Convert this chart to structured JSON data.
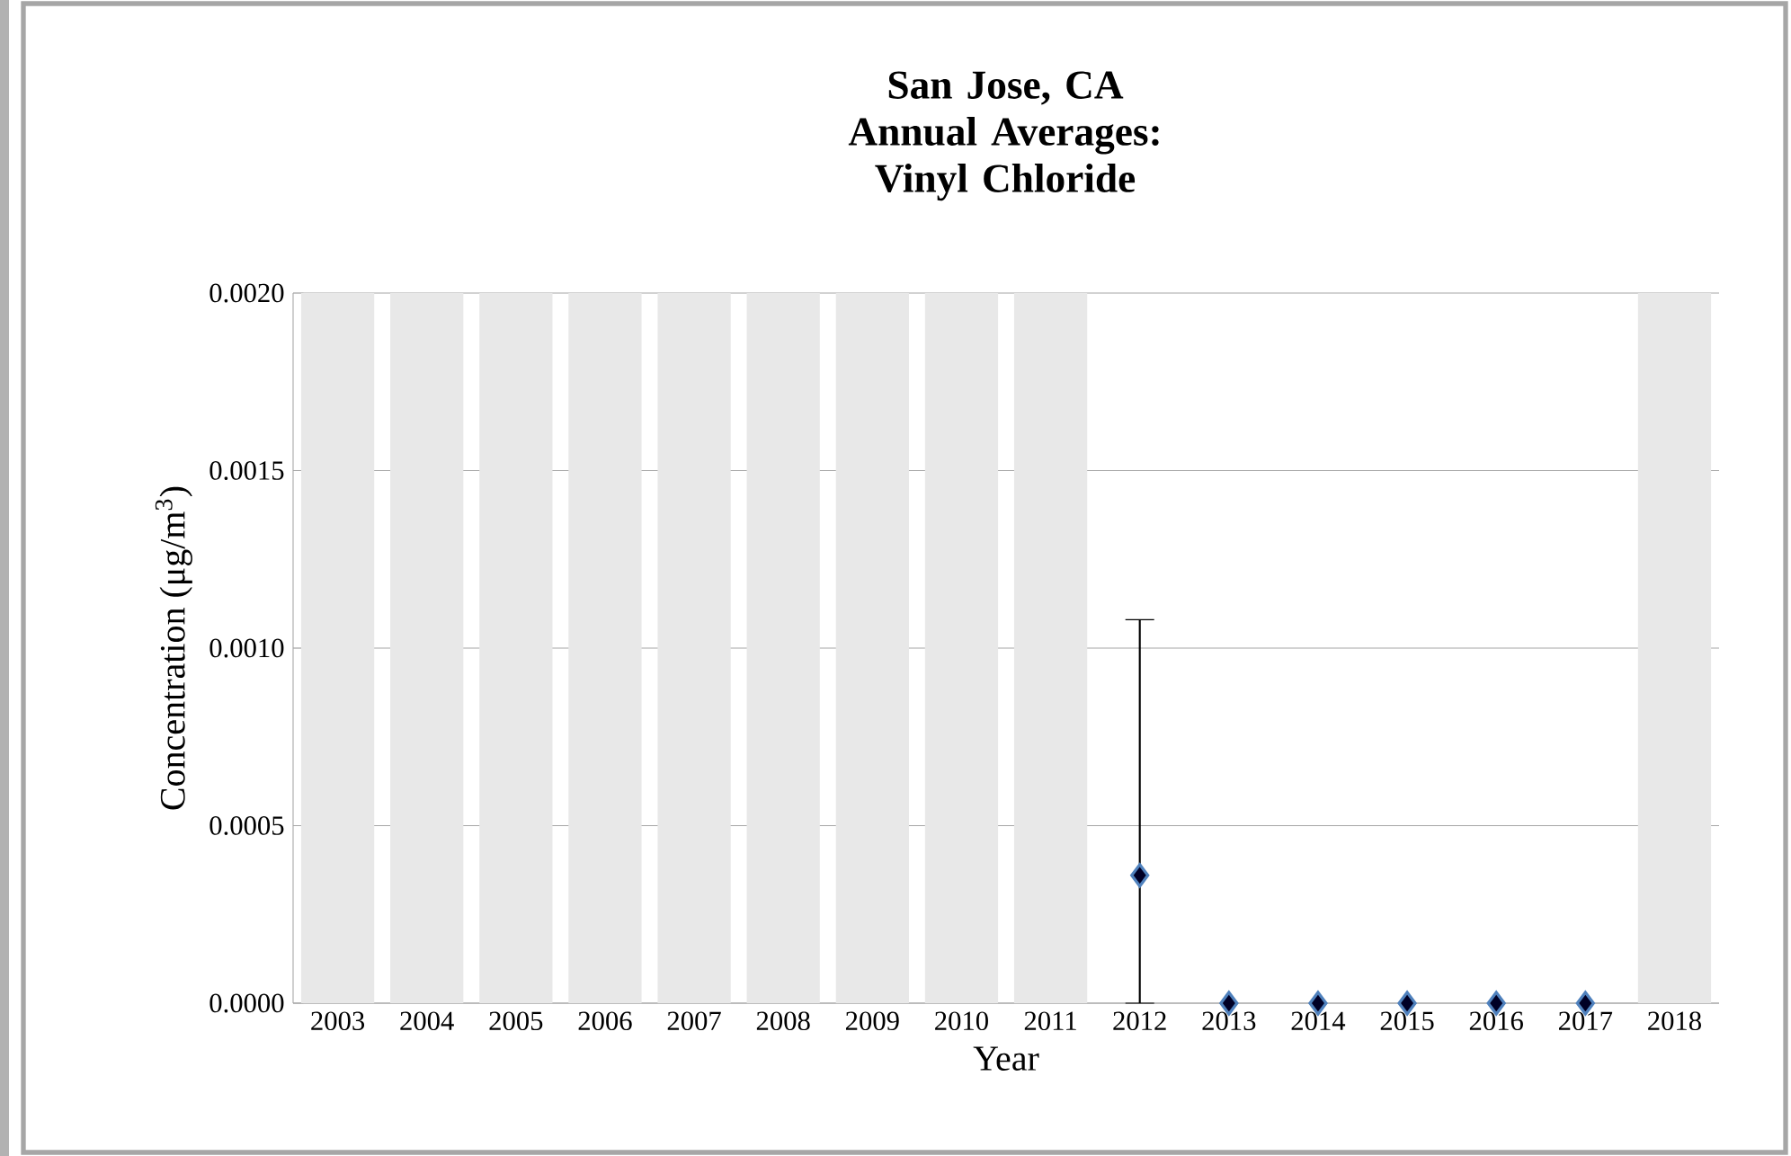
{
  "chart_data": {
    "type": "scatter",
    "title": "San Jose, CA",
    "subtitle": "Annual Averages: Vinyl Chloride",
    "xlabel": "Year",
    "ylabel": "Concentration (μg/m$^{3}$)",
    "categories": [
      "2003",
      "2004",
      "2005",
      "2006",
      "2007",
      "2008",
      "2009",
      "2010",
      "2011",
      "2012",
      "2013",
      "2014",
      "2015",
      "2016",
      "2017",
      "2018"
    ],
    "series": [
      {
        "type": "bar",
        "color": "#e8e8e8",
        "values": [
          0.002,
          0.002,
          0.002,
          0.002,
          0.002,
          0.002,
          0.002,
          0.002,
          0.002,
          null,
          null,
          null,
          null,
          null,
          null,
          0.002
        ]
      },
      {
        "color": "#4f81bd",
        "marker": "diamond",
        "values": [
          null,
          null,
          null,
          null,
          null,
          null,
          null,
          null,
          null,
          0.00036,
          0,
          0,
          0,
          0,
          0,
          null
        ],
        "errors": [
          null,
          null,
          null,
          null,
          null,
          null,
          null,
          null,
          null,
          [
            0,
            0.00108
          ],
          null,
          null,
          null,
          null,
          null,
          null
        ]
      }
    ],
    "ylim": [
      0,
      0.002
    ],
    "yticks": [
      {
        "value": 0,
        "label": "0.0000"
      },
      {
        "value": 0.0005,
        "label": "0.0005"
      },
      {
        "value": 0.001,
        "label": "0.0010"
      },
      {
        "value": 0.0015,
        "label": "0.0015"
      },
      {
        "value": 0.002,
        "label": "0.0020"
      }
    ],
    "grid": "y"
  }
}
